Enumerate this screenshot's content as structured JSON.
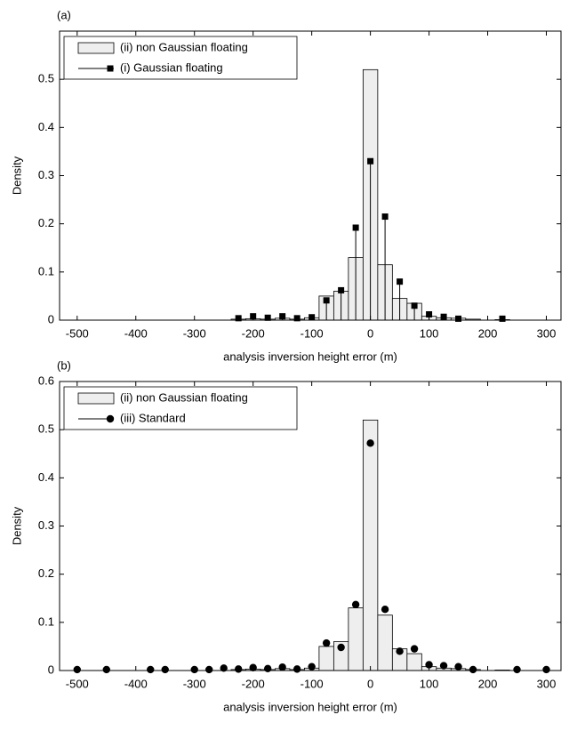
{
  "chart_data": [
    {
      "type": "histogram",
      "panel_label": "(a)",
      "xlabel": "analysis inversion height error (m)",
      "ylabel": "Density",
      "xlim": [
        -530,
        325
      ],
      "xticks": [
        -500,
        -400,
        -300,
        -200,
        -100,
        0,
        100,
        200,
        300
      ],
      "ylim": [
        0,
        0.6
      ],
      "yticks": [
        0,
        0.1,
        0.2,
        0.3,
        0.4,
        0.5
      ],
      "legend": "upper left",
      "bins": [
        -237.5,
        -212.5,
        -187.5,
        -162.5,
        -137.5,
        -112.5,
        -87.5,
        -62.5,
        -37.5,
        -12.5,
        12.5,
        37.5,
        62.5,
        87.5,
        112.5,
        137.5,
        162.5,
        187.5,
        212.5,
        237.5
      ],
      "series": [
        {
          "name": "(ii) non Gaussian floating",
          "color": "#eeeeee",
          "values": [
            0.002,
            0.003,
            0.002,
            0.004,
            0.002,
            0.005,
            0.05,
            0.06,
            0.13,
            0.52,
            0.115,
            0.045,
            0.035,
            0.008,
            0.005,
            0.004,
            0.002,
            0,
            0.001
          ]
        },
        {
          "name": "(i) Gaussian floating",
          "color": "#000000",
          "marker": "square",
          "stem": true,
          "x": [
            -225,
            -200,
            -175,
            -150,
            -125,
            -100,
            -75,
            -50,
            -25,
            0,
            25,
            50,
            75,
            100,
            125,
            150,
            225
          ],
          "values": [
            0.004,
            0.008,
            0.005,
            0.008,
            0.004,
            0.006,
            0.041,
            0.062,
            0.192,
            0.33,
            0.215,
            0.08,
            0.03,
            0.012,
            0.007,
            0.003,
            0.003
          ]
        }
      ]
    },
    {
      "type": "histogram",
      "panel_label": "(b)",
      "xlabel": "analysis inversion height error (m)",
      "ylabel": "Density",
      "xlim": [
        -530,
        325
      ],
      "xticks": [
        -500,
        -400,
        -300,
        -200,
        -100,
        0,
        100,
        200,
        300
      ],
      "ylim": [
        0,
        0.6
      ],
      "yticks": [
        0,
        0.1,
        0.2,
        0.3,
        0.4,
        0.5,
        0.6
      ],
      "legend": "upper left",
      "bins": [
        -237.5,
        -212.5,
        -187.5,
        -162.5,
        -137.5,
        -112.5,
        -87.5,
        -62.5,
        -37.5,
        -12.5,
        12.5,
        37.5,
        62.5,
        87.5,
        112.5,
        137.5,
        162.5,
        187.5,
        212.5,
        237.5
      ],
      "series": [
        {
          "name": "(ii) non Gaussian floating",
          "color": "#eeeeee",
          "values": [
            0.002,
            0.003,
            0.002,
            0.004,
            0.002,
            0.005,
            0.05,
            0.06,
            0.13,
            0.52,
            0.115,
            0.045,
            0.035,
            0.008,
            0.005,
            0.004,
            0.002,
            0,
            0.001
          ]
        },
        {
          "name": "(iii) Standard",
          "color": "#000000",
          "marker": "circle",
          "stem": false,
          "x": [
            -500,
            -450,
            -375,
            -350,
            -300,
            -275,
            -250,
            -225,
            -200,
            -175,
            -150,
            -125,
            -100,
            -75,
            -50,
            -25,
            0,
            25,
            50,
            75,
            100,
            125,
            150,
            175,
            250,
            300
          ],
          "values": [
            0.002,
            0.002,
            0.002,
            0.002,
            0.002,
            0.002,
            0.005,
            0.003,
            0.006,
            0.004,
            0.007,
            0.003,
            0.008,
            0.057,
            0.048,
            0.137,
            0.472,
            0.127,
            0.04,
            0.045,
            0.012,
            0.01,
            0.008,
            0.002,
            0.002,
            0.002
          ]
        }
      ]
    }
  ]
}
